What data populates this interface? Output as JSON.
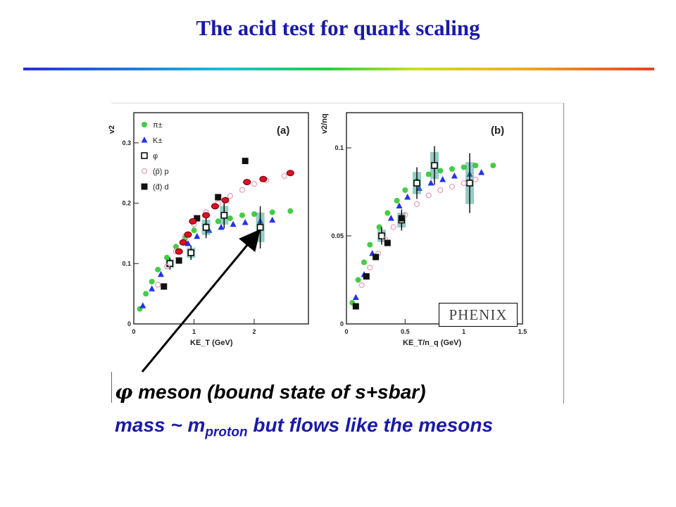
{
  "slide": {
    "title": "The acid test for quark scaling",
    "caption_line1": "meson (bound state of s+sbar)",
    "caption_phi": "φ",
    "caption_line2_pre": "mass ~ m",
    "caption_line2_sub": "proton",
    "caption_line2_post": " but flows like the mesons",
    "phenix_label": "PHENIX"
  },
  "colors": {
    "title": "#1a1aa8",
    "pion": "#44cc44",
    "kaon": "#2233ee",
    "phi": "#000000",
    "proton": "#e8a0b8",
    "deuteron": "#111111",
    "overlay_markers": "#dd1122",
    "error_band": "#2a9a8a"
  },
  "chart_data": [
    {
      "panel_label": "(a)",
      "type": "scatter",
      "ylabel": "v2",
      "xlabel": "KE_T (GeV)",
      "xlim": [
        0,
        2.9
      ],
      "ylim": [
        0,
        0.35
      ],
      "x_ticks": [
        "0",
        "1",
        "2"
      ],
      "y_ticks": [
        "0",
        "0.1",
        "0.2",
        "0.3"
      ],
      "legend": [
        "π±",
        "K±",
        "φ",
        "(p̄) p",
        "(d̄) d"
      ],
      "series": [
        {
          "name": "π±",
          "marker": "circle",
          "x": [
            0.1,
            0.2,
            0.3,
            0.4,
            0.55,
            0.7,
            0.85,
            1.0,
            1.2,
            1.4,
            1.6,
            1.8,
            2.0,
            2.3,
            2.6
          ],
          "y": [
            0.025,
            0.05,
            0.07,
            0.09,
            0.11,
            0.128,
            0.142,
            0.155,
            0.163,
            0.17,
            0.175,
            0.18,
            0.182,
            0.185,
            0.187
          ]
        },
        {
          "name": "K±",
          "marker": "triangle",
          "x": [
            0.15,
            0.3,
            0.45,
            0.6,
            0.75,
            0.9,
            1.05,
            1.25,
            1.45,
            1.65,
            1.85,
            2.1,
            2.3
          ],
          "y": [
            0.03,
            0.058,
            0.082,
            0.103,
            0.12,
            0.133,
            0.145,
            0.155,
            0.16,
            0.165,
            0.168,
            0.17,
            0.172
          ]
        },
        {
          "name": "φ",
          "marker": "open-square",
          "x": [
            0.6,
            0.95,
            1.2,
            1.5,
            2.1
          ],
          "y": [
            0.1,
            0.118,
            0.16,
            0.18,
            0.16
          ],
          "yerr": [
            0.01,
            0.012,
            0.018,
            0.022,
            0.035
          ]
        },
        {
          "name": "(p̄) p",
          "marker": "open-circle",
          "x": [
            0.4,
            0.55,
            0.7,
            0.85,
            1.0,
            1.2,
            1.4,
            1.6,
            1.8,
            2.0,
            2.2,
            2.5
          ],
          "y": [
            0.065,
            0.095,
            0.12,
            0.145,
            0.165,
            0.185,
            0.2,
            0.212,
            0.222,
            0.232,
            0.238,
            0.245
          ]
        },
        {
          "name": "(d̄) d",
          "marker": "filled-square",
          "x": [
            0.5,
            0.75,
            1.05,
            1.4,
            1.85
          ],
          "y": [
            0.062,
            0.105,
            0.175,
            0.21,
            0.27
          ]
        },
        {
          "name": "",
          "marker": "red-ellipse",
          "x": [
            0.75,
            0.82,
            0.9,
            0.98,
            1.2,
            1.35,
            1.52,
            1.88,
            2.15,
            2.6
          ],
          "y": [
            0.12,
            0.135,
            0.148,
            0.17,
            0.18,
            0.195,
            0.205,
            0.235,
            0.24,
            0.25
          ]
        }
      ]
    },
    {
      "panel_label": "(b)",
      "type": "scatter",
      "ylabel": "v2/nq",
      "xlabel": "KE_T/n_q (GeV)",
      "xlim": [
        0,
        1.5
      ],
      "ylim": [
        0,
        0.12
      ],
      "x_ticks": [
        "0",
        "0.5",
        "1",
        "1.5"
      ],
      "y_ticks": [
        "0",
        "0.05",
        "0.1"
      ],
      "series": [
        {
          "name": "π±",
          "marker": "circle",
          "x": [
            0.05,
            0.1,
            0.15,
            0.2,
            0.28,
            0.35,
            0.43,
            0.5,
            0.6,
            0.7,
            0.8,
            0.9,
            1.0,
            1.1,
            1.25
          ],
          "y": [
            0.012,
            0.025,
            0.035,
            0.045,
            0.055,
            0.063,
            0.07,
            0.076,
            0.081,
            0.085,
            0.087,
            0.088,
            0.089,
            0.09,
            0.09
          ]
        },
        {
          "name": "K±",
          "marker": "triangle",
          "x": [
            0.08,
            0.15,
            0.22,
            0.3,
            0.38,
            0.45,
            0.52,
            0.62,
            0.72,
            0.82,
            0.92,
            1.05,
            1.15
          ],
          "y": [
            0.015,
            0.028,
            0.04,
            0.05,
            0.06,
            0.067,
            0.072,
            0.077,
            0.08,
            0.082,
            0.084,
            0.085,
            0.086
          ]
        },
        {
          "name": "φ",
          "marker": "open-square",
          "x": [
            0.3,
            0.47,
            0.6,
            0.75,
            1.05
          ],
          "y": [
            0.05,
            0.059,
            0.08,
            0.09,
            0.08
          ],
          "yerr": [
            0.005,
            0.006,
            0.009,
            0.011,
            0.017
          ]
        },
        {
          "name": "(p̄) p",
          "marker": "open-circle",
          "x": [
            0.13,
            0.2,
            0.27,
            0.33,
            0.4,
            0.5,
            0.6,
            0.7,
            0.8,
            0.9,
            1.0,
            1.1
          ],
          "y": [
            0.022,
            0.032,
            0.04,
            0.048,
            0.055,
            0.062,
            0.068,
            0.073,
            0.076,
            0.078,
            0.08,
            0.082
          ]
        },
        {
          "name": "(d̄) d",
          "marker": "filled-square",
          "x": [
            0.08,
            0.17,
            0.25,
            0.35,
            0.47
          ],
          "y": [
            0.01,
            0.027,
            0.038,
            0.046,
            0.06
          ]
        }
      ]
    }
  ]
}
